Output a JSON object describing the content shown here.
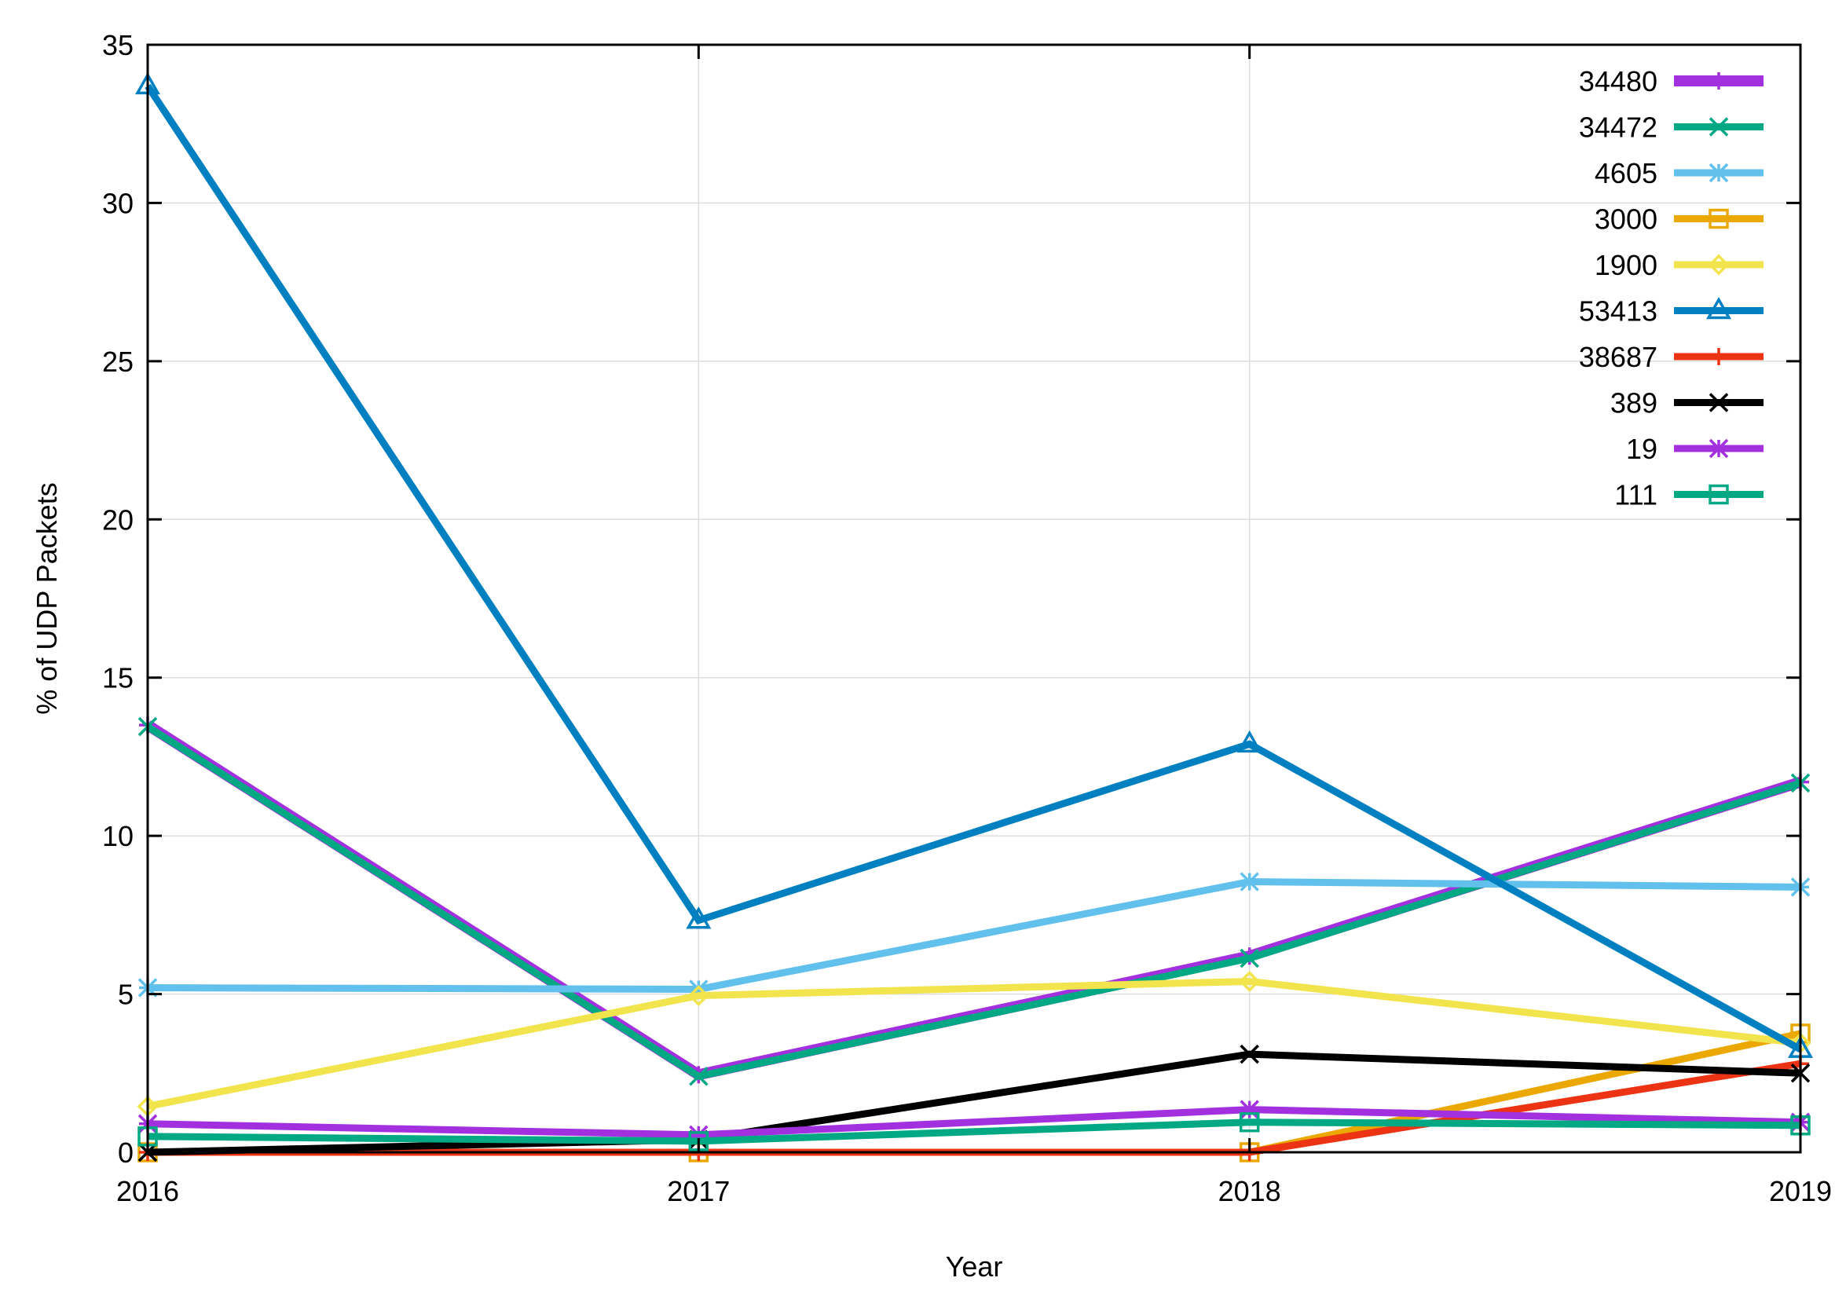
{
  "chart_data": {
    "type": "line",
    "title": "",
    "xlabel": "Year",
    "ylabel": "% of UDP Packets",
    "x": [
      2016,
      2017,
      2018,
      2019
    ],
    "xlim": [
      2016,
      2019
    ],
    "ylim": [
      0,
      35
    ],
    "yticks": [
      0,
      5,
      10,
      15,
      20,
      25,
      30,
      35
    ],
    "xticks": [
      2016,
      2017,
      2018,
      2019
    ],
    "grid": true,
    "legend_position": "top-right",
    "series": [
      {
        "name": "34480",
        "color": "#a330de",
        "marker": "plus",
        "width": 14,
        "values": [
          13.5,
          2.45,
          6.2,
          11.7
        ]
      },
      {
        "name": "34472",
        "color": "#00a884",
        "marker": "x",
        "width": 9,
        "values": [
          13.45,
          2.4,
          6.13,
          11.67
        ]
      },
      {
        "name": "4605",
        "color": "#62c0ec",
        "marker": "asterisk",
        "width": 9,
        "values": [
          5.2,
          5.15,
          8.55,
          8.38
        ]
      },
      {
        "name": "3000",
        "color": "#eaa800",
        "marker": "square",
        "width": 9,
        "values": [
          0,
          0,
          0,
          3.75
        ]
      },
      {
        "name": "1900",
        "color": "#f2e44c",
        "marker": "diamond",
        "width": 9,
        "values": [
          1.45,
          4.95,
          5.4,
          3.45
        ]
      },
      {
        "name": "53413",
        "color": "#0080c0",
        "marker": "triangle",
        "width": 9,
        "values": [
          33.7,
          7.33,
          12.9,
          3.25
        ]
      },
      {
        "name": "38687",
        "color": "#ec3414",
        "marker": "plus",
        "width": 9,
        "values": [
          0,
          0,
          0,
          2.8
        ]
      },
      {
        "name": "389",
        "color": "#000000",
        "marker": "x",
        "width": 9,
        "values": [
          0,
          0.4,
          3.1,
          2.5
        ]
      },
      {
        "name": "19",
        "color": "#a330de",
        "marker": "asterisk",
        "width": 9,
        "values": [
          0.9,
          0.55,
          1.35,
          0.95
        ]
      },
      {
        "name": "111",
        "color": "#00a884",
        "marker": "square",
        "width": 9,
        "values": [
          0.5,
          0.35,
          0.95,
          0.85
        ]
      }
    ]
  }
}
